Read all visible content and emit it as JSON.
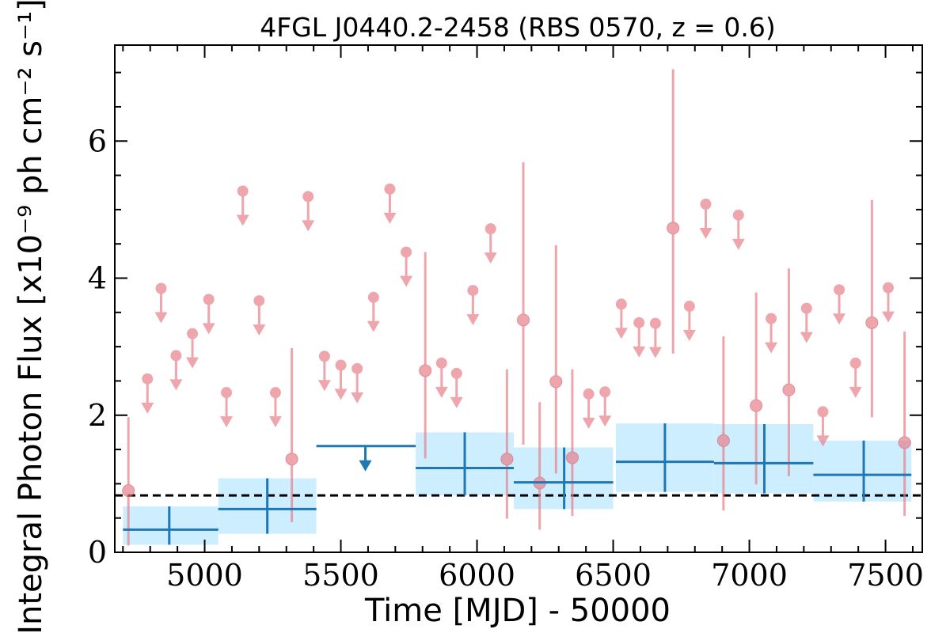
{
  "chart_data": {
    "type": "scatter",
    "title": "4FGL J0440.2-2458 (RBS 0570, z = 0.6)",
    "xlabel": "Time [MJD] - 50000",
    "ylabel": "Integral Photon Flux [x10⁻⁹ ph cm⁻² s⁻¹]",
    "xlim": [
      4670,
      7635
    ],
    "ylim": [
      0,
      7.4
    ],
    "x_ticks": [
      5000,
      5500,
      6000,
      6500,
      7000,
      7500
    ],
    "y_ticks": [
      0,
      2,
      4,
      6
    ],
    "reference_line": {
      "y": 0.83,
      "style": "dashed",
      "color": "#000000"
    },
    "colors": {
      "short_bins": "#e8808a",
      "long_bins": "#1f77b4",
      "long_band": "#cdeeff"
    },
    "short_bin_upper_limits": [
      {
        "x": 4790,
        "y": 2.53
      },
      {
        "x": 4840,
        "y": 3.85
      },
      {
        "x": 4895,
        "y": 2.87
      },
      {
        "x": 4955,
        "y": 3.19
      },
      {
        "x": 5015,
        "y": 3.69
      },
      {
        "x": 5080,
        "y": 2.33
      },
      {
        "x": 5140,
        "y": 5.27
      },
      {
        "x": 5200,
        "y": 3.67
      },
      {
        "x": 5260,
        "y": 2.33
      },
      {
        "x": 5380,
        "y": 5.19
      },
      {
        "x": 5440,
        "y": 2.86
      },
      {
        "x": 5500,
        "y": 2.73
      },
      {
        "x": 5560,
        "y": 2.68
      },
      {
        "x": 5620,
        "y": 3.72
      },
      {
        "x": 5680,
        "y": 5.3
      },
      {
        "x": 5740,
        "y": 4.38
      },
      {
        "x": 5870,
        "y": 2.76
      },
      {
        "x": 5925,
        "y": 2.61
      },
      {
        "x": 5985,
        "y": 3.82
      },
      {
        "x": 6050,
        "y": 4.72
      },
      {
        "x": 6410,
        "y": 2.31
      },
      {
        "x": 6470,
        "y": 2.34
      },
      {
        "x": 6530,
        "y": 3.62
      },
      {
        "x": 6595,
        "y": 3.35
      },
      {
        "x": 6655,
        "y": 3.34
      },
      {
        "x": 6780,
        "y": 3.59
      },
      {
        "x": 6840,
        "y": 5.08
      },
      {
        "x": 6960,
        "y": 4.92
      },
      {
        "x": 7080,
        "y": 3.41
      },
      {
        "x": 7210,
        "y": 3.56
      },
      {
        "x": 7270,
        "y": 2.05
      },
      {
        "x": 7330,
        "y": 3.83
      },
      {
        "x": 7390,
        "y": 2.76
      },
      {
        "x": 7510,
        "y": 3.86
      }
    ],
    "short_bin_detections": [
      {
        "x": 4720,
        "y": 0.9,
        "ylo": 0.1,
        "yhi": 1.97
      },
      {
        "x": 5320,
        "y": 1.36,
        "ylo": 0.44,
        "yhi": 2.98
      },
      {
        "x": 5810,
        "y": 2.65,
        "ylo": 1.37,
        "yhi": 4.38
      },
      {
        "x": 6110,
        "y": 1.36,
        "ylo": 0.49,
        "yhi": 2.67
      },
      {
        "x": 6170,
        "y": 3.39,
        "ylo": 1.57,
        "yhi": 5.69
      },
      {
        "x": 6230,
        "y": 1.01,
        "ylo": 0.33,
        "yhi": 2.19
      },
      {
        "x": 6290,
        "y": 2.49,
        "ylo": 1.15,
        "yhi": 4.48
      },
      {
        "x": 6350,
        "y": 1.38,
        "ylo": 0.53,
        "yhi": 2.67
      },
      {
        "x": 6720,
        "y": 4.73,
        "ylo": 2.9,
        "yhi": 7.05
      },
      {
        "x": 6905,
        "y": 1.63,
        "ylo": 0.61,
        "yhi": 3.15
      },
      {
        "x": 7025,
        "y": 2.14,
        "ylo": 0.99,
        "yhi": 3.79
      },
      {
        "x": 7145,
        "y": 2.37,
        "ylo": 1.11,
        "yhi": 4.14
      },
      {
        "x": 7450,
        "y": 3.35,
        "ylo": 1.97,
        "yhi": 5.14
      },
      {
        "x": 7570,
        "y": 1.6,
        "ylo": 0.53,
        "yhi": 3.22
      }
    ],
    "long_bin_detections": [
      {
        "x": 4870,
        "xlo": 4700,
        "xhi": 5050,
        "y": 0.33,
        "ylo": 0.11,
        "yhi": 0.67
      },
      {
        "x": 5230,
        "xlo": 5050,
        "xhi": 5410,
        "y": 0.63,
        "ylo": 0.27,
        "yhi": 1.08
      },
      {
        "x": 5955,
        "xlo": 5775,
        "xhi": 6135,
        "y": 1.23,
        "ylo": 0.83,
        "yhi": 1.75
      },
      {
        "x": 6320,
        "xlo": 6135,
        "xhi": 6500,
        "y": 1.02,
        "ylo": 0.63,
        "yhi": 1.53
      },
      {
        "x": 6690,
        "xlo": 6510,
        "xhi": 6870,
        "y": 1.32,
        "ylo": 0.88,
        "yhi": 1.88
      },
      {
        "x": 7055,
        "xlo": 6870,
        "xhi": 7235,
        "y": 1.3,
        "ylo": 0.86,
        "yhi": 1.87
      },
      {
        "x": 7420,
        "xlo": 7235,
        "xhi": 7595,
        "y": 1.13,
        "ylo": 0.74,
        "yhi": 1.63
      }
    ],
    "long_bin_upper_limits": [
      {
        "x": 5590,
        "xlo": 5410,
        "xhi": 5775,
        "y": 1.55
      }
    ]
  }
}
